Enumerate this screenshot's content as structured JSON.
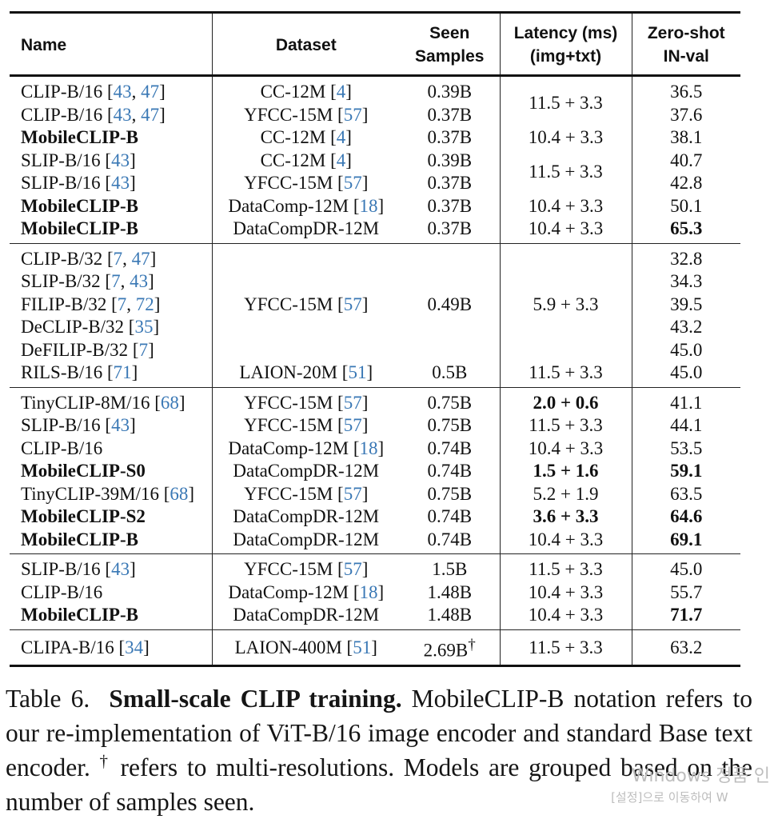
{
  "table": {
    "headers": {
      "name": "Name",
      "dataset": "Dataset",
      "seen_line1": "Seen",
      "seen_line2": "Samples",
      "latency_line1": "Latency (ms)",
      "latency_line2": "(img+txt)",
      "zeroshot_line1": "Zero-shot",
      "zeroshot_line2": "IN-val"
    },
    "groups": [
      [
        {
          "name": "CLIP-B/16 [",
          "name_cites": [
            "43",
            "47"
          ],
          "dataset": "CC-12M [",
          "dataset_cite": "4",
          "seen": "0.39B",
          "latency": "11.5 + 3.3",
          "zeroshot": "36.5"
        },
        {
          "name": "CLIP-B/16 [",
          "name_cites": [
            "43",
            "47"
          ],
          "dataset": "YFCC-15M [",
          "dataset_cite": "57",
          "seen": "0.37B",
          "latency": "",
          "zeroshot": "37.6"
        },
        {
          "name": "MobileCLIP-B",
          "dataset": "CC-12M [",
          "dataset_cite": "4",
          "seen": "0.37B",
          "latency": "10.4 + 3.3",
          "zeroshot": "38.1"
        },
        {
          "name": "SLIP-B/16 [",
          "name_cites": [
            "43"
          ],
          "dataset": "CC-12M [",
          "dataset_cite": "4",
          "seen": "0.39B",
          "latency": "11.5 + 3.3",
          "zeroshot": "40.7"
        },
        {
          "name": "SLIP-B/16 [",
          "name_cites": [
            "43"
          ],
          "dataset": "YFCC-15M [",
          "dataset_cite": "57",
          "seen": "0.37B",
          "latency": "",
          "zeroshot": "42.8"
        },
        {
          "name": "MobileCLIP-B",
          "dataset": "DataComp-12M [",
          "dataset_cite": "18",
          "seen": "0.37B",
          "latency": "10.4 + 3.3",
          "zeroshot": "50.1"
        },
        {
          "name": "MobileCLIP-B",
          "dataset": "DataCompDR-12M",
          "seen": "0.37B",
          "latency": "10.4 + 3.3",
          "zeroshot": "65.3"
        }
      ],
      [
        {
          "name": "CLIP-B/32 [",
          "name_cites": [
            "7",
            "47"
          ],
          "zeroshot": "32.8"
        },
        {
          "name": "SLIP-B/32 [",
          "name_cites": [
            "7",
            "43"
          ],
          "zeroshot": "34.3"
        },
        {
          "name": "FILIP-B/32 [",
          "name_cites": [
            "7",
            "72"
          ],
          "dataset": "YFCC-15M [",
          "dataset_cite": "57",
          "seen": "0.49B",
          "latency": "5.9 + 3.3",
          "zeroshot": "39.5"
        },
        {
          "name": "DeCLIP-B/32 [",
          "name_cites": [
            "35"
          ],
          "zeroshot": "43.2"
        },
        {
          "name": "DeFILIP-B/32 [",
          "name_cites": [
            "7"
          ],
          "zeroshot": "45.0"
        },
        {
          "name": "RILS-B/16 [",
          "name_cites": [
            "71"
          ],
          "dataset": "LAION-20M [",
          "dataset_cite": "51",
          "seen": "0.5B",
          "latency": "11.5 + 3.3",
          "zeroshot": "45.0"
        }
      ],
      [
        {
          "name": "TinyCLIP-8M/16 [",
          "name_cites": [
            "68"
          ],
          "dataset": "YFCC-15M [",
          "dataset_cite": "57",
          "seen": "0.75B",
          "latency": "2.0 + 0.6",
          "zeroshot": "41.1"
        },
        {
          "name": "SLIP-B/16 [",
          "name_cites": [
            "43"
          ],
          "dataset": "YFCC-15M [",
          "dataset_cite": "57",
          "seen": "0.75B",
          "latency": "11.5 + 3.3",
          "zeroshot": "44.1"
        },
        {
          "name": "CLIP-B/16",
          "dataset": "DataComp-12M [",
          "dataset_cite": "18",
          "seen": "0.74B",
          "latency": "10.4 + 3.3",
          "zeroshot": "53.5"
        },
        {
          "name": "MobileCLIP-S0",
          "dataset": "DataCompDR-12M",
          "seen": "0.74B",
          "latency": "1.5 + 1.6",
          "zeroshot": "59.1"
        },
        {
          "name": "TinyCLIP-39M/16 [",
          "name_cites": [
            "68"
          ],
          "dataset": "YFCC-15M [",
          "dataset_cite": "57",
          "seen": "0.75B",
          "latency": "5.2 + 1.9",
          "zeroshot": "63.5"
        },
        {
          "name": "MobileCLIP-S2",
          "dataset": "DataCompDR-12M",
          "seen": "0.74B",
          "latency": "3.6 + 3.3",
          "zeroshot": "64.6"
        },
        {
          "name": "MobileCLIP-B",
          "dataset": "DataCompDR-12M",
          "seen": "0.74B",
          "latency": "10.4 + 3.3",
          "zeroshot": "69.1"
        }
      ],
      [
        {
          "name": "SLIP-B/16 [",
          "name_cites": [
            "43"
          ],
          "dataset": "YFCC-15M [",
          "dataset_cite": "57",
          "seen": "1.5B",
          "latency": "11.5 + 3.3",
          "zeroshot": "45.0"
        },
        {
          "name": "CLIP-B/16",
          "dataset": "DataComp-12M [",
          "dataset_cite": "18",
          "seen": "1.48B",
          "latency": "10.4 + 3.3",
          "zeroshot": "55.7"
        },
        {
          "name": "MobileCLIP-B",
          "dataset": "DataCompDR-12M",
          "seen": "1.48B",
          "latency": "10.4 + 3.3",
          "zeroshot": "71.7"
        }
      ],
      [
        {
          "name": "CLIPA-B/16 [",
          "name_cites": [
            "34"
          ],
          "dataset": "LAION-400M [",
          "dataset_cite": "51",
          "seen": "2.69B",
          "seen_sup": "†",
          "latency": "11.5 + 3.3",
          "zeroshot": "63.2"
        }
      ]
    ],
    "sep": ", ",
    "close": "]"
  },
  "caption": {
    "label": "Table 6.",
    "title": "Small-scale CLIP training.",
    "text_part1": "MobileCLIP-B notation refers to our re-implementation of ViT-B/16 image encoder and standard Base text encoder.",
    "dagger": "†",
    "text_part2": "refers to multi-resolutions. Models are grouped based on the number of samples seen."
  },
  "watermark": {
    "line1": "Windows 정품 인",
    "line2": "[설정]으로 이동하여 W"
  },
  "colors": {
    "citation": "#3a78b5",
    "text": "#111111",
    "watermark": "#bdbdbd"
  }
}
